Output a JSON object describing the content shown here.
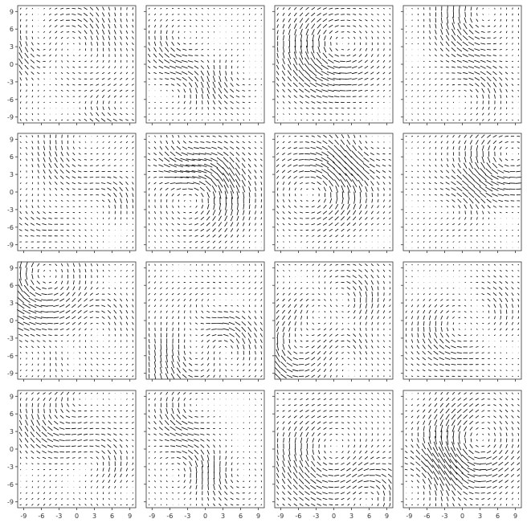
{
  "chart_data": {
    "type": "quiver-grid",
    "rows": 4,
    "cols": 4,
    "xlim": [
      -10,
      10
    ],
    "ylim": [
      -10,
      10
    ],
    "grid_step": 1,
    "ticks": [
      -9,
      -6,
      -3,
      0,
      3,
      6,
      9
    ],
    "tick_labels": [
      "-9",
      "-6",
      "-3",
      "0",
      "3",
      "6",
      "9"
    ],
    "grid": false,
    "arrow_color": "#000000",
    "dot_color": "#bfbfbf",
    "frame_color": "#333333",
    "panels": [
      {
        "vortices": [
          {
            "cx": -8,
            "cy": 2,
            "r": 3,
            "s": 1.0
          },
          {
            "cx": 0,
            "cy": 6,
            "r": 4,
            "s": 0.9
          },
          {
            "cx": 5,
            "cy": -8,
            "r": 3,
            "s": 0.8
          }
        ],
        "bg": 0.35
      },
      {
        "vortices": [
          {
            "cx": -5,
            "cy": 3,
            "r": 3,
            "s": 0.9
          },
          {
            "cx": -4,
            "cy": -4,
            "r": 3,
            "s": 0.8
          },
          {
            "cx": 4,
            "cy": -3,
            "r": 3,
            "s": 1.0
          }
        ],
        "bg": 0.15
      },
      {
        "vortices": [
          {
            "cx": -1,
            "cy": 2,
            "r": 5,
            "s": 1.3
          }
        ],
        "bg": 0.12
      },
      {
        "vortices": [
          {
            "cx": 1,
            "cy": 7,
            "r": 4,
            "s": 1.2
          },
          {
            "cx": 3,
            "cy": -4,
            "r": 3,
            "s": 0.8
          }
        ],
        "bg": 0.2
      },
      {
        "vortices": [
          {
            "cx": -2,
            "cy": 6,
            "r": 4,
            "s": 0.9
          },
          {
            "cx": 6,
            "cy": -1,
            "r": 3,
            "s": 1.1
          },
          {
            "cx": -6,
            "cy": -4,
            "r": 3,
            "s": 0.7
          }
        ],
        "bg": 0.3
      },
      {
        "vortices": [
          {
            "cx": -4,
            "cy": 6,
            "r": 3,
            "s": 1.1
          },
          {
            "cx": 0,
            "cy": 0,
            "r": 5,
            "s": 1.2
          },
          {
            "cx": 5,
            "cy": 3,
            "r": 2,
            "s": 0.6
          }
        ],
        "bg": 0.1
      },
      {
        "vortices": [
          {
            "cx": 4,
            "cy": 6,
            "r": 3,
            "s": 0.8
          },
          {
            "cx": -1,
            "cy": 1,
            "r": 5,
            "s": 1.1
          }
        ],
        "bg": 0.22
      },
      {
        "vortices": [
          {
            "cx": 6,
            "cy": 5,
            "r": 4,
            "s": 1.3
          },
          {
            "cx": 0,
            "cy": -2,
            "r": 3,
            "s": 0.8
          }
        ],
        "bg": 0.25
      },
      {
        "vortices": [
          {
            "cx": -8,
            "cy": 7,
            "r": 5,
            "s": 1.3
          },
          {
            "cx": 4,
            "cy": 1,
            "r": 3,
            "s": 0.7
          },
          {
            "cx": -2,
            "cy": -7,
            "r": 2,
            "s": 0.6
          }
        ],
        "bg": 0.28
      },
      {
        "vortices": [
          {
            "cx": -3,
            "cy": -7,
            "r": 4,
            "s": 1.1
          },
          {
            "cx": 4,
            "cy": -3,
            "r": 3,
            "s": 1.0
          },
          {
            "cx": 1,
            "cy": 2,
            "r": 3,
            "s": 0.7
          }
        ],
        "bg": 0.32
      },
      {
        "vortices": [
          {
            "cx": -8,
            "cy": -6,
            "r": 4,
            "s": 1.2
          },
          {
            "cx": 3,
            "cy": 4,
            "r": 3,
            "s": 0.9
          },
          {
            "cx": -3,
            "cy": 1,
            "r": 3,
            "s": 0.8
          },
          {
            "cx": 3,
            "cy": -4,
            "r": 2,
            "s": 0.7
          }
        ],
        "bg": 0.3
      },
      {
        "vortices": [
          {
            "cx": -2,
            "cy": -2,
            "r": 4,
            "s": 1.0
          },
          {
            "cx": 5,
            "cy": 2,
            "r": 3,
            "s": 0.8
          }
        ],
        "bg": 0.18
      },
      {
        "vortices": [
          {
            "cx": -4,
            "cy": 4,
            "r": 4,
            "s": 1.2
          },
          {
            "cx": 5,
            "cy": -2,
            "r": 3,
            "s": 0.9
          },
          {
            "cx": -1,
            "cy": 8,
            "r": 2,
            "s": 0.8
          }
        ],
        "bg": 0.35
      },
      {
        "vortices": [
          {
            "cx": -4,
            "cy": 6,
            "r": 3,
            "s": 1.2
          },
          {
            "cx": -3,
            "cy": -3,
            "r": 3,
            "s": 0.9
          },
          {
            "cx": 4,
            "cy": -5,
            "r": 3,
            "s": 0.8
          }
        ],
        "bg": 0.15
      },
      {
        "vortices": [
          {
            "cx": -3,
            "cy": -2,
            "r": 5,
            "s": 1.1
          },
          {
            "cx": 7,
            "cy": -7,
            "r": 3,
            "s": 1.2
          }
        ],
        "bg": 0.2
      },
      {
        "vortices": [
          {
            "cx": 1,
            "cy": 0,
            "r": 5,
            "s": 1.2
          },
          {
            "cx": -5,
            "cy": -4,
            "r": 3,
            "s": 0.8
          },
          {
            "cx": 4,
            "cy": 7,
            "r": 2,
            "s": 0.5
          }
        ],
        "bg": 0.25
      }
    ]
  }
}
